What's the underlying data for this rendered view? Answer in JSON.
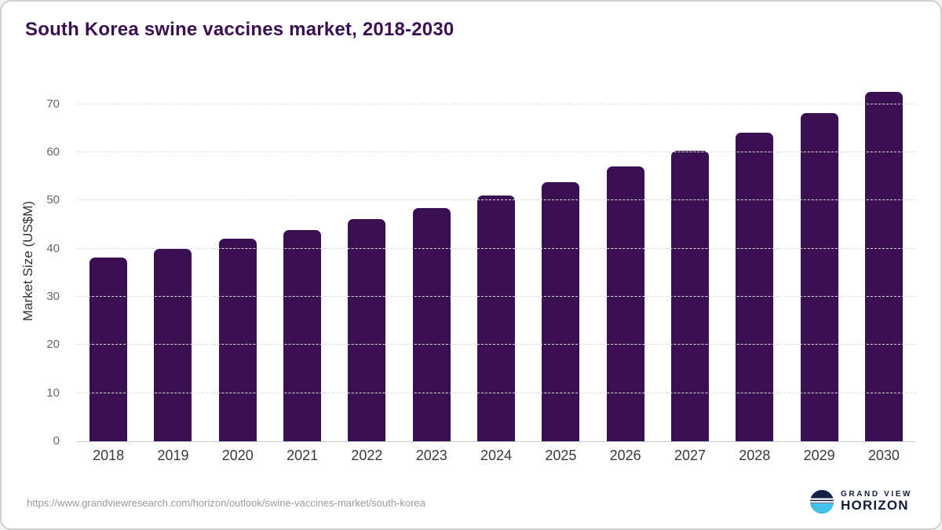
{
  "title": "South Korea swine vaccines market, 2018-2030",
  "colors": {
    "bar": "#3b1053",
    "title": "#3b1053",
    "logo_navy": "#152245",
    "logo_blue": "#43c1e8"
  },
  "chart_data": {
    "type": "bar",
    "title": "South Korea swine vaccines market, 2018-2030",
    "categories": [
      "2018",
      "2019",
      "2020",
      "2021",
      "2022",
      "2023",
      "2024",
      "2025",
      "2026",
      "2027",
      "2028",
      "2029",
      "2030"
    ],
    "values": [
      38.2,
      40.0,
      42.1,
      43.9,
      46.2,
      48.5,
      51.0,
      53.8,
      57.0,
      60.4,
      64.0,
      68.1,
      72.5
    ],
    "xlabel": "",
    "ylabel": "Market Size (US$M)",
    "ylim": [
      0,
      75
    ],
    "yticks": [
      0,
      10,
      20,
      30,
      40,
      50,
      60,
      70
    ],
    "grid": "horizontal-dashed",
    "legend": "none",
    "bar_color": "#3b1053"
  },
  "footer": {
    "source_url": "https://www.grandviewresearch.com/horizon/outlook/swine-vaccines-market/south-korea",
    "logo": {
      "line1": "GRAND VIEW",
      "line2": "HORIZON"
    }
  }
}
